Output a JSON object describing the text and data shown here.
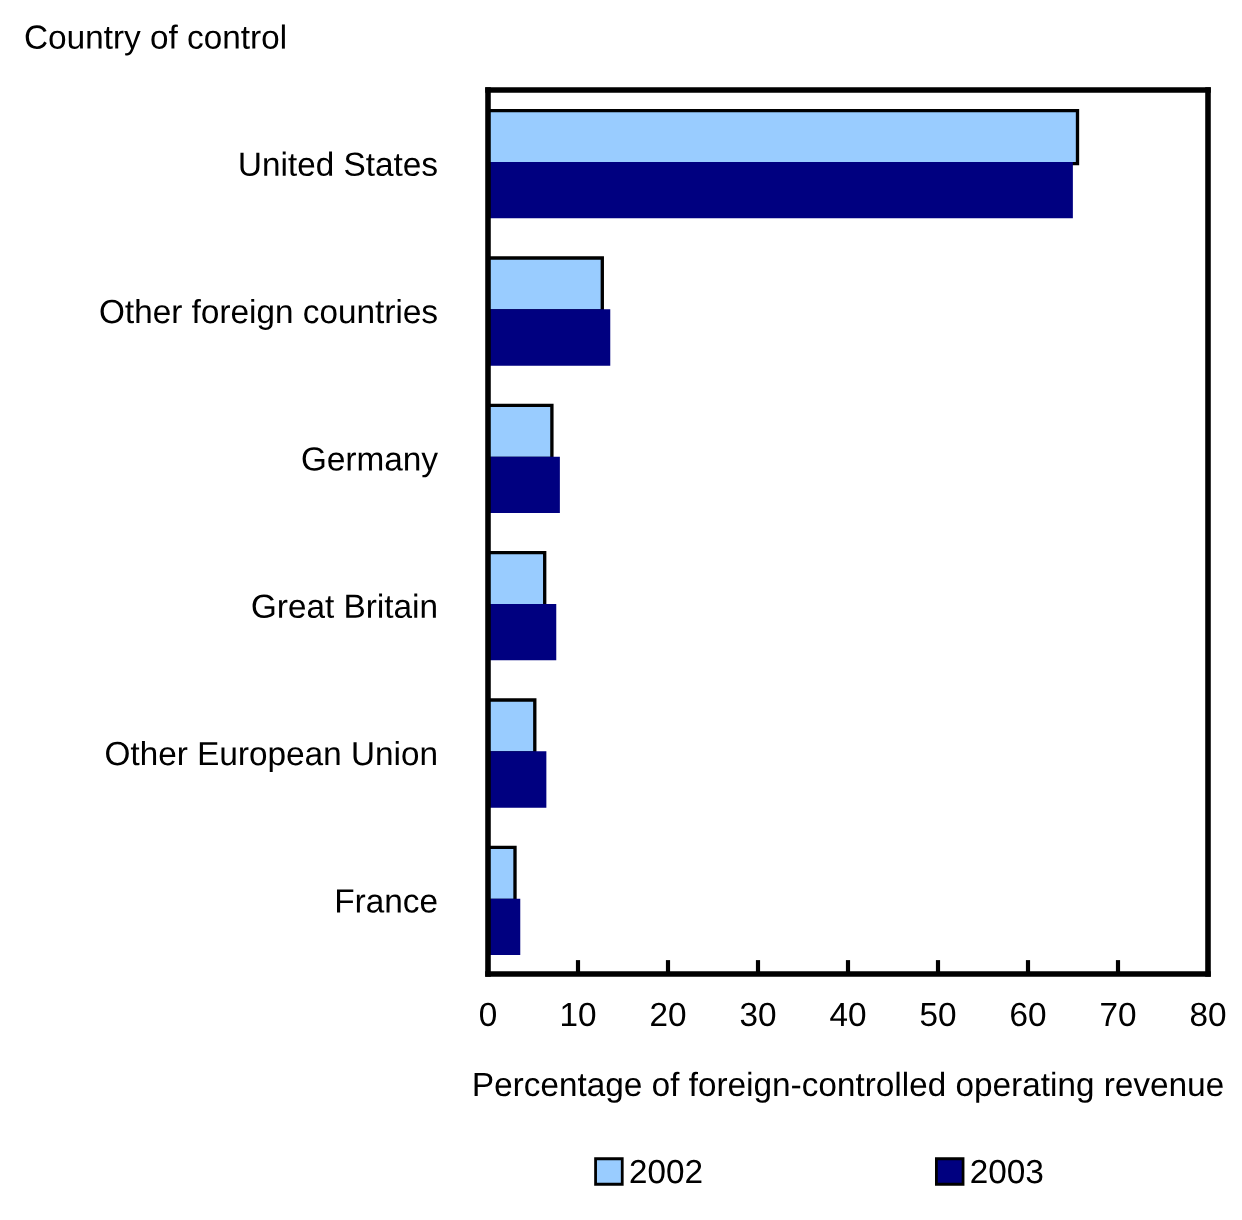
{
  "chart_data": {
    "type": "bar",
    "orientation": "horizontal",
    "ylabel": "Country of control",
    "xlabel": "Percentage of foreign-controlled operating revenue",
    "categories": [
      "United States",
      "Other foreign countries",
      "Germany",
      "Great Britain",
      "Other European Union",
      "France"
    ],
    "series": [
      {
        "name": "2002",
        "color": "#99ccff",
        "values": [
          65.5,
          12.7,
          7.1,
          6.3,
          5.2,
          3.0
        ]
      },
      {
        "name": "2003",
        "color": "#000080",
        "values": [
          64.8,
          13.4,
          7.8,
          7.4,
          6.3,
          3.4
        ]
      }
    ],
    "xlim": [
      0,
      80
    ],
    "xticks": [
      0,
      10,
      20,
      30,
      40,
      50,
      60,
      70,
      80
    ],
    "grid": false,
    "legend": "bottom"
  }
}
